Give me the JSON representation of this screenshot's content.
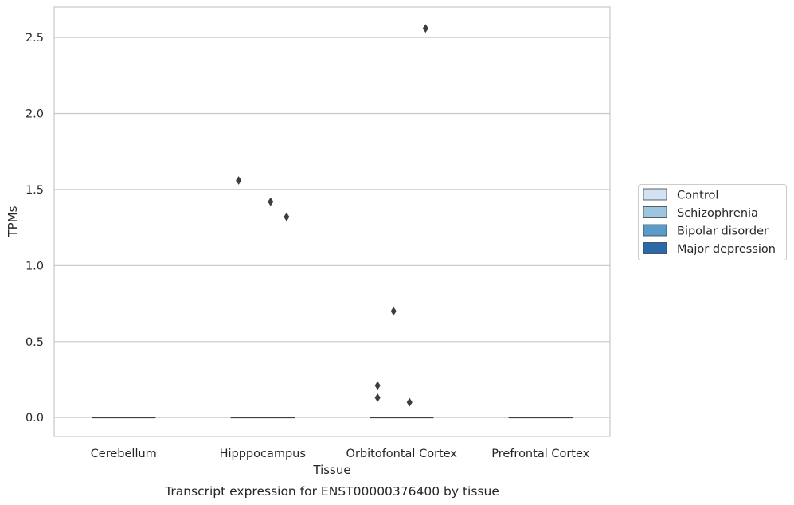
{
  "chart_data": {
    "type": "box",
    "xlabel": "Tissue",
    "ylabel": "TPMs",
    "caption": "Transcript expression for ENST00000376400 by tissue",
    "categories": [
      "Cerebellum",
      "Hipppocampus",
      "Orbitofontal Cortex",
      "Prefrontal Cortex"
    ],
    "ylim": [
      -0.125,
      2.7
    ],
    "yticks": [
      0.0,
      0.5,
      1.0,
      1.5,
      2.0,
      2.5
    ],
    "ytick_labels": [
      "0.0",
      "0.5",
      "1.0",
      "1.5",
      "2.0",
      "2.5"
    ],
    "grid": true,
    "legend_position": "right",
    "series": [
      {
        "name": "Control",
        "color": "#d1e2f2"
      },
      {
        "name": "Schizophrenia",
        "color": "#9dc5df"
      },
      {
        "name": "Bipolar disorder",
        "color": "#5b9bc9"
      },
      {
        "name": "Major depression",
        "color": "#2a6aaa"
      }
    ],
    "medians": [
      0.0,
      0.0,
      0.0,
      0.0
    ],
    "outliers": [
      {
        "category": "Hipppocampus",
        "series": "Control",
        "value": 1.56
      },
      {
        "category": "Hipppocampus",
        "series": "Bipolar disorder",
        "value": 1.42
      },
      {
        "category": "Hipppocampus",
        "series": "Major depression",
        "value": 1.32
      },
      {
        "category": "Orbitofontal Cortex",
        "series": "Control",
        "value": 0.21
      },
      {
        "category": "Orbitofontal Cortex",
        "series": "Control",
        "value": 0.13
      },
      {
        "category": "Orbitofontal Cortex",
        "series": "Schizophrenia",
        "value": 0.7
      },
      {
        "category": "Orbitofontal Cortex",
        "series": "Bipolar disorder",
        "value": 0.1
      },
      {
        "category": "Orbitofontal Cortex",
        "series": "Major depression",
        "value": 2.56
      }
    ]
  }
}
